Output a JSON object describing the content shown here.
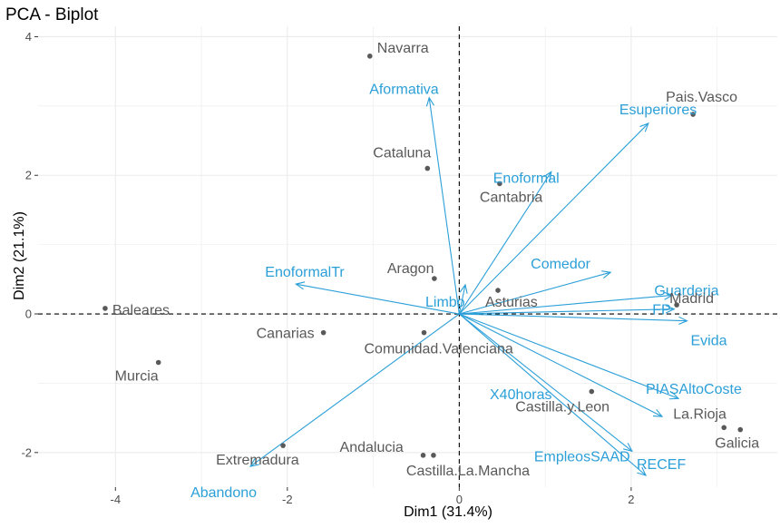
{
  "chart_data": {
    "type": "scatter",
    "subtype": "pca-biplot",
    "title": "PCA - Biplot",
    "xlabel": "Dim1 (31.4%)",
    "ylabel": "Dim2 (21.1%)",
    "xlim": [
      -4.9,
      3.7
    ],
    "ylim": [
      -2.5,
      4.15
    ],
    "xticks": [
      -4,
      -2,
      0,
      2
    ],
    "yticks": [
      -2,
      0,
      2,
      4
    ],
    "grid": true,
    "legend": "none",
    "colors": {
      "individuals": "#595959",
      "variables": "#2b9fd8",
      "grid": "#ebebeb",
      "reference": "#000000"
    },
    "individuals": [
      {
        "name": "Navarra",
        "x": -1.04,
        "y": 3.72
      },
      {
        "name": "Pais.Vasco",
        "x": 2.72,
        "y": 2.88
      },
      {
        "name": "Cataluna",
        "x": -0.37,
        "y": 2.1
      },
      {
        "name": "Cantabria",
        "x": 0.47,
        "y": 1.88
      },
      {
        "name": "Aragon",
        "x": -0.29,
        "y": 0.51
      },
      {
        "name": "Asturias",
        "x": 0.45,
        "y": 0.34
      },
      {
        "name": "Madrid",
        "x": 2.53,
        "y": 0.13
      },
      {
        "name": "Baleares",
        "x": -4.12,
        "y": 0.08
      },
      {
        "name": "Canarias",
        "x": -1.58,
        "y": -0.27
      },
      {
        "name": "Comunidad.Valenciana",
        "x": -0.41,
        "y": -0.27
      },
      {
        "name": "Murcia",
        "x": -3.5,
        "y": -0.7
      },
      {
        "name": "Castilla.y.Leon",
        "x": 1.54,
        "y": -1.12
      },
      {
        "name": "La.Rioja",
        "x": 3.08,
        "y": -1.64
      },
      {
        "name": "Galicia",
        "x": 3.27,
        "y": -1.67
      },
      {
        "name": "Extremadura",
        "x": -2.05,
        "y": -1.9
      },
      {
        "name": "Andalucia",
        "x": -0.42,
        "y": -2.04
      },
      {
        "name": "Castilla.La.Mancha",
        "x": -0.3,
        "y": -2.04
      }
    ],
    "variables": [
      {
        "name": "Aformativa",
        "x": -0.35,
        "y": 3.12
      },
      {
        "name": "Esuperiores",
        "x": 2.2,
        "y": 2.75
      },
      {
        "name": "Enoformal",
        "x": 1.07,
        "y": 2.05
      },
      {
        "name": "EnoformalTr",
        "x": -1.9,
        "y": 0.43
      },
      {
        "name": "Comedor",
        "x": 1.76,
        "y": 0.6
      },
      {
        "name": "Limbo",
        "x": 0.07,
        "y": 0.42
      },
      {
        "name": "Guarderia",
        "x": 2.48,
        "y": 0.27
      },
      {
        "name": "FP",
        "x": 2.5,
        "y": 0.07
      },
      {
        "name": "Evida",
        "x": 2.65,
        "y": -0.1
      },
      {
        "name": "PIASAltoCoste",
        "x": 2.55,
        "y": -1.22
      },
      {
        "name": "X40horas",
        "x": 2.36,
        "y": -1.48
      },
      {
        "name": "EmpleosSAAD",
        "x": 2.01,
        "y": -1.98
      },
      {
        "name": "RECEF",
        "x": 2.17,
        "y": -2.33
      },
      {
        "name": "Abandono",
        "x": -2.43,
        "y": -2.2
      }
    ]
  }
}
